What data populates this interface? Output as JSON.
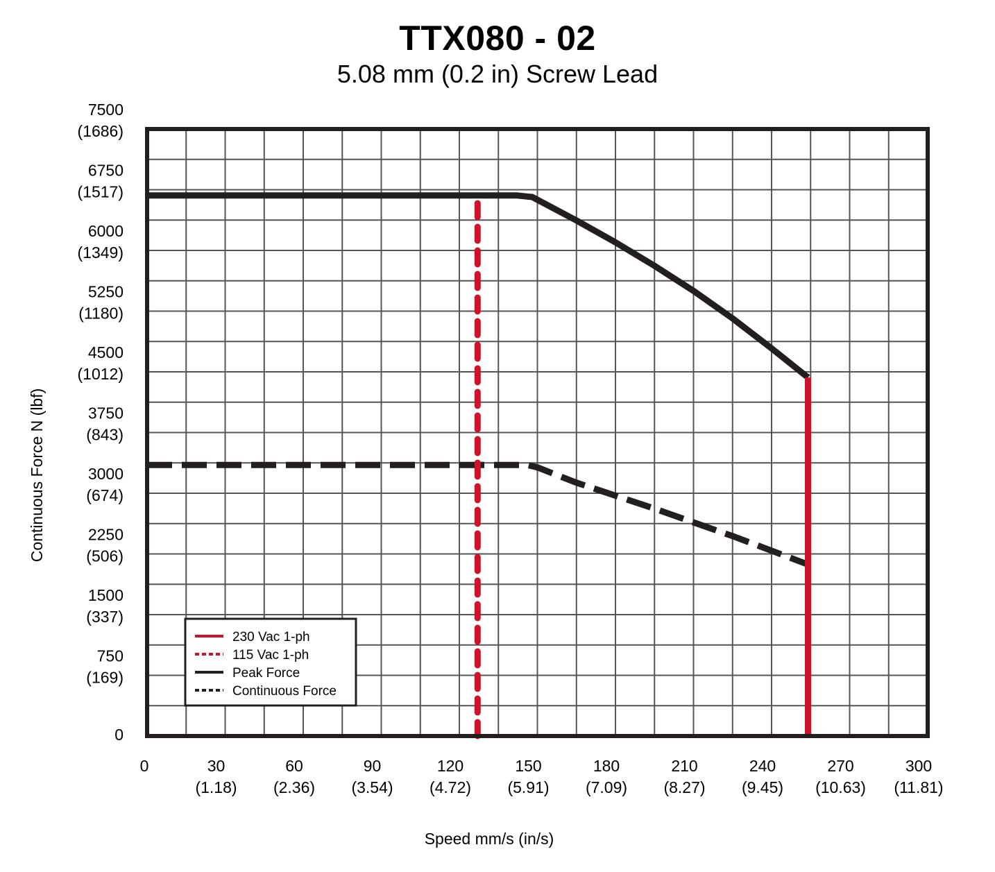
{
  "chart_data": {
    "type": "line",
    "title": "TTX080 - 02",
    "subtitle": "5.08 mm (0.2 in) Screw Lead",
    "xlabel": "Speed mm/s (in/s)",
    "ylabel": "Continuous Force N (lbf)",
    "xlim": [
      0,
      300
    ],
    "ylim": [
      0,
      7500
    ],
    "grid": true,
    "legend_position": "bottom-left",
    "x_ticks": [
      {
        "value": 0,
        "label": "0",
        "sub": ""
      },
      {
        "value": 30,
        "label": "30",
        "sub": "(1.18)"
      },
      {
        "value": 60,
        "label": "60",
        "sub": "(2.36)"
      },
      {
        "value": 90,
        "label": "90",
        "sub": "(3.54)"
      },
      {
        "value": 120,
        "label": "120",
        "sub": "(4.72)"
      },
      {
        "value": 150,
        "label": "150",
        "sub": "(5.91)"
      },
      {
        "value": 180,
        "label": "180",
        "sub": "(7.09)"
      },
      {
        "value": 210,
        "label": "210",
        "sub": "(8.27)"
      },
      {
        "value": 240,
        "label": "240",
        "sub": "(9.45)"
      },
      {
        "value": 270,
        "label": "270",
        "sub": "(10.63)"
      },
      {
        "value": 300,
        "label": "300",
        "sub": "(11.81)"
      }
    ],
    "y_ticks": [
      {
        "value": 0,
        "label": "0",
        "sub": ""
      },
      {
        "value": 750,
        "label": "750",
        "sub": "(169)"
      },
      {
        "value": 1500,
        "label": "1500",
        "sub": "(337)"
      },
      {
        "value": 2250,
        "label": "2250",
        "sub": "(506)"
      },
      {
        "value": 3000,
        "label": "3000",
        "sub": "(674)"
      },
      {
        "value": 3750,
        "label": "3750",
        "sub": "(843)"
      },
      {
        "value": 4500,
        "label": "4500",
        "sub": "(1012)"
      },
      {
        "value": 5250,
        "label": "5250",
        "sub": "(1180)"
      },
      {
        "value": 6000,
        "label": "6000",
        "sub": "(1349)"
      },
      {
        "value": 6750,
        "label": "6750",
        "sub": "(1517)"
      },
      {
        "value": 7500,
        "label": "7500",
        "sub": "(1686)"
      }
    ],
    "series": [
      {
        "name": "230 Vac 1-ph",
        "color": "#d0112b",
        "style": "solid",
        "x": [
          254,
          254
        ],
        "y": [
          0,
          4430
        ]
      },
      {
        "name": "115 Vac 1-ph",
        "color": "#d0112b",
        "style": "dashed",
        "x": [
          127,
          127
        ],
        "y": [
          0,
          6680
        ]
      },
      {
        "name": "Peak Force",
        "color": "#231f20",
        "style": "solid",
        "x": [
          0,
          142,
          148,
          165,
          180,
          195,
          210,
          225,
          240,
          254
        ],
        "y": [
          6680,
          6680,
          6660,
          6370,
          6100,
          5810,
          5500,
          5160,
          4790,
          4430
        ]
      },
      {
        "name": "Continuous Force",
        "color": "#231f20",
        "style": "dashed",
        "x": [
          0,
          146,
          150,
          165,
          180,
          195,
          210,
          225,
          240,
          254
        ],
        "y": [
          3350,
          3350,
          3320,
          3130,
          2970,
          2810,
          2640,
          2470,
          2290,
          2120
        ]
      }
    ]
  }
}
